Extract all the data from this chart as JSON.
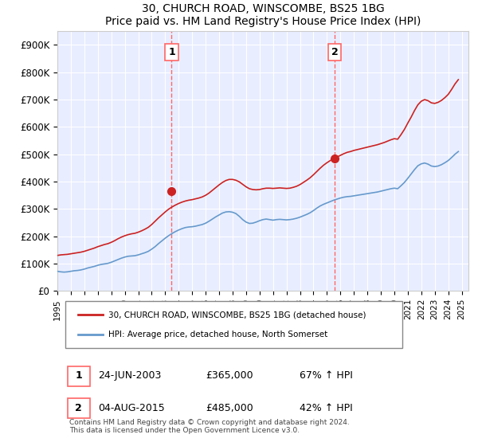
{
  "title": "30, CHURCH ROAD, WINSCOMBE, BS25 1BG",
  "subtitle": "Price paid vs. HM Land Registry's House Price Index (HPI)",
  "legend_line1": "30, CHURCH ROAD, WINSCOMBE, BS25 1BG (detached house)",
  "legend_line2": "HPI: Average price, detached house, North Somerset",
  "footnote": "Contains HM Land Registry data © Crown copyright and database right 2024.\nThis data is licensed under the Open Government Licence v3.0.",
  "annotation1": {
    "num": "1",
    "date": "24-JUN-2003",
    "price": "£365,000",
    "change": "67% ↑ HPI"
  },
  "annotation2": {
    "num": "2",
    "date": "04-AUG-2015",
    "price": "£485,000",
    "change": "42% ↑ HPI"
  },
  "hpi_color": "#6699cc",
  "price_color": "#cc2222",
  "marker_color_1": "#cc2222",
  "marker_color_2": "#cc2222",
  "vline_color": "#ff6666",
  "background_color": "#f0f4ff",
  "plot_bg": "#e8eeff",
  "ylim": [
    0,
    950000
  ],
  "yticks": [
    0,
    100000,
    200000,
    300000,
    400000,
    500000,
    600000,
    700000,
    800000,
    900000
  ],
  "ytick_labels": [
    "£0",
    "£100K",
    "£200K",
    "£300K",
    "£400K",
    "£500K",
    "£600K",
    "£700K",
    "£800K",
    "£900K"
  ],
  "xlim_start": 1995.0,
  "xlim_end": 2025.5,
  "xtick_years": [
    1995,
    1996,
    1997,
    1998,
    1999,
    2000,
    2001,
    2002,
    2003,
    2004,
    2005,
    2006,
    2007,
    2008,
    2009,
    2010,
    2011,
    2012,
    2013,
    2014,
    2015,
    2016,
    2017,
    2018,
    2019,
    2020,
    2021,
    2022,
    2023,
    2024,
    2025
  ],
  "sale1_x": 2003.48,
  "sale1_y": 365000,
  "sale2_x": 2015.58,
  "sale2_y": 485000,
  "hpi_data_x": [
    1995.0,
    1995.25,
    1995.5,
    1995.75,
    1996.0,
    1996.25,
    1996.5,
    1996.75,
    1997.0,
    1997.25,
    1997.5,
    1997.75,
    1998.0,
    1998.25,
    1998.5,
    1998.75,
    1999.0,
    1999.25,
    1999.5,
    1999.75,
    2000.0,
    2000.25,
    2000.5,
    2000.75,
    2001.0,
    2001.25,
    2001.5,
    2001.75,
    2002.0,
    2002.25,
    2002.5,
    2002.75,
    2003.0,
    2003.25,
    2003.5,
    2003.75,
    2004.0,
    2004.25,
    2004.5,
    2004.75,
    2005.0,
    2005.25,
    2005.5,
    2005.75,
    2006.0,
    2006.25,
    2006.5,
    2006.75,
    2007.0,
    2007.25,
    2007.5,
    2007.75,
    2008.0,
    2008.25,
    2008.5,
    2008.75,
    2009.0,
    2009.25,
    2009.5,
    2009.75,
    2010.0,
    2010.25,
    2010.5,
    2010.75,
    2011.0,
    2011.25,
    2011.5,
    2011.75,
    2012.0,
    2012.25,
    2012.5,
    2012.75,
    2013.0,
    2013.25,
    2013.5,
    2013.75,
    2014.0,
    2014.25,
    2014.5,
    2014.75,
    2015.0,
    2015.25,
    2015.5,
    2015.75,
    2016.0,
    2016.25,
    2016.5,
    2016.75,
    2017.0,
    2017.25,
    2017.5,
    2017.75,
    2018.0,
    2018.25,
    2018.5,
    2018.75,
    2019.0,
    2019.25,
    2019.5,
    2019.75,
    2020.0,
    2020.25,
    2020.5,
    2020.75,
    2021.0,
    2021.25,
    2021.5,
    2021.75,
    2022.0,
    2022.25,
    2022.5,
    2022.75,
    2023.0,
    2023.25,
    2023.5,
    2023.75,
    2024.0,
    2024.25,
    2024.5,
    2024.75
  ],
  "hpi_data_y": [
    72000,
    70000,
    69000,
    70000,
    72000,
    74000,
    75000,
    77000,
    80000,
    84000,
    87000,
    90000,
    94000,
    97000,
    99000,
    101000,
    105000,
    110000,
    115000,
    120000,
    124000,
    127000,
    128000,
    129000,
    132000,
    136000,
    140000,
    145000,
    153000,
    162000,
    173000,
    183000,
    193000,
    202000,
    210000,
    217000,
    223000,
    228000,
    232000,
    234000,
    235000,
    237000,
    240000,
    243000,
    248000,
    255000,
    263000,
    271000,
    278000,
    285000,
    289000,
    290000,
    288000,
    283000,
    273000,
    261000,
    252000,
    247000,
    248000,
    252000,
    257000,
    261000,
    263000,
    261000,
    259000,
    261000,
    262000,
    261000,
    260000,
    261000,
    263000,
    266000,
    270000,
    275000,
    280000,
    286000,
    294000,
    303000,
    311000,
    317000,
    322000,
    327000,
    332000,
    336000,
    340000,
    343000,
    345000,
    346000,
    348000,
    350000,
    352000,
    354000,
    356000,
    358000,
    360000,
    362000,
    365000,
    368000,
    371000,
    374000,
    376000,
    374000,
    385000,
    397000,
    412000,
    428000,
    444000,
    458000,
    465000,
    468000,
    464000,
    457000,
    455000,
    457000,
    462000,
    469000,
    477000,
    488000,
    500000,
    510000
  ],
  "price_data_x": [
    1995.0,
    1995.25,
    1995.5,
    1995.75,
    1996.0,
    1996.25,
    1996.5,
    1996.75,
    1997.0,
    1997.25,
    1997.5,
    1997.75,
    1998.0,
    1998.25,
    1998.5,
    1998.75,
    1999.0,
    1999.25,
    1999.5,
    1999.75,
    2000.0,
    2000.25,
    2000.5,
    2000.75,
    2001.0,
    2001.25,
    2001.5,
    2001.75,
    2002.0,
    2002.25,
    2002.5,
    2002.75,
    2003.0,
    2003.25,
    2003.5,
    2003.75,
    2004.0,
    2004.25,
    2004.5,
    2004.75,
    2005.0,
    2005.25,
    2005.5,
    2005.75,
    2006.0,
    2006.25,
    2006.5,
    2006.75,
    2007.0,
    2007.25,
    2007.5,
    2007.75,
    2008.0,
    2008.25,
    2008.5,
    2008.75,
    2009.0,
    2009.25,
    2009.5,
    2009.75,
    2010.0,
    2010.25,
    2010.5,
    2010.75,
    2011.0,
    2011.25,
    2011.5,
    2011.75,
    2012.0,
    2012.25,
    2012.5,
    2012.75,
    2013.0,
    2013.25,
    2013.5,
    2013.75,
    2014.0,
    2014.25,
    2014.5,
    2014.75,
    2015.0,
    2015.25,
    2015.5,
    2015.75,
    2016.0,
    2016.25,
    2016.5,
    2016.75,
    2017.0,
    2017.25,
    2017.5,
    2017.75,
    2018.0,
    2018.25,
    2018.5,
    2018.75,
    2019.0,
    2019.25,
    2019.5,
    2019.75,
    2020.0,
    2020.25,
    2020.5,
    2020.75,
    2021.0,
    2021.25,
    2021.5,
    2021.75,
    2022.0,
    2022.25,
    2022.5,
    2022.75,
    2023.0,
    2023.25,
    2023.5,
    2023.75,
    2024.0,
    2024.25,
    2024.5,
    2024.75
  ],
  "price_data_y": [
    130000,
    132000,
    133000,
    134000,
    136000,
    138000,
    140000,
    142000,
    145000,
    149000,
    153000,
    157000,
    162000,
    166000,
    170000,
    173000,
    178000,
    184000,
    191000,
    197000,
    202000,
    206000,
    209000,
    211000,
    215000,
    220000,
    226000,
    233000,
    243000,
    255000,
    267000,
    278000,
    289000,
    299000,
    307000,
    314000,
    320000,
    325000,
    329000,
    332000,
    334000,
    337000,
    340000,
    344000,
    350000,
    358000,
    368000,
    378000,
    388000,
    397000,
    404000,
    408000,
    408000,
    405000,
    399000,
    390000,
    381000,
    374000,
    371000,
    370000,
    371000,
    374000,
    376000,
    376000,
    375000,
    376000,
    377000,
    376000,
    375000,
    376000,
    379000,
    383000,
    389000,
    397000,
    405000,
    414000,
    425000,
    437000,
    449000,
    460000,
    469000,
    477000,
    484000,
    490000,
    496000,
    502000,
    507000,
    510000,
    514000,
    517000,
    520000,
    523000,
    526000,
    529000,
    532000,
    535000,
    539000,
    543000,
    548000,
    553000,
    557000,
    555000,
    572000,
    591000,
    614000,
    636000,
    660000,
    681000,
    694000,
    700000,
    696000,
    688000,
    686000,
    690000,
    697000,
    707000,
    719000,
    737000,
    757000,
    773000
  ]
}
